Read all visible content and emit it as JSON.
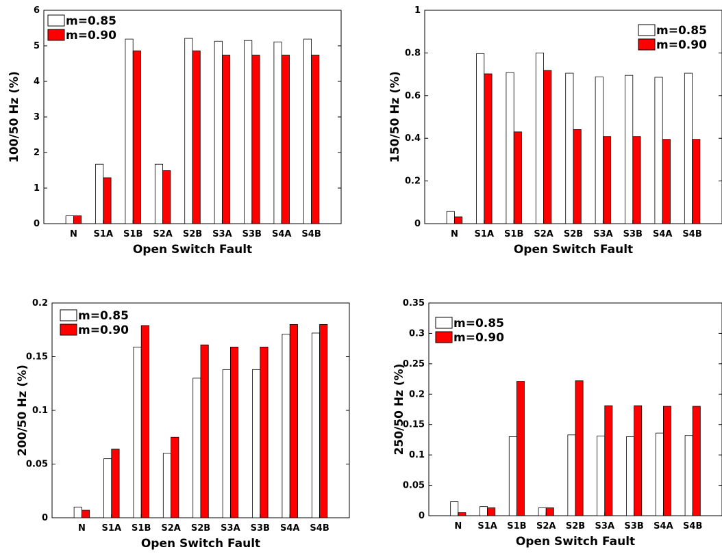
{
  "chart_data": [
    {
      "type": "bar",
      "categories": [
        "N",
        "S1A",
        "S1B",
        "S2A",
        "S2B",
        "S3A",
        "S3B",
        "S4A",
        "S4B"
      ],
      "series": [
        {
          "name": "m=0.85",
          "color": "#ffffff",
          "values": [
            0.22,
            1.67,
            5.19,
            1.67,
            5.21,
            5.13,
            5.15,
            5.11,
            5.19
          ]
        },
        {
          "name": "m=0.90",
          "color": "#ff0000",
          "values": [
            0.22,
            1.29,
            4.86,
            1.49,
            4.86,
            4.74,
            4.74,
            4.74,
            4.74
          ]
        }
      ],
      "xlabel": "Open Switch Fault",
      "ylabel": "100/50 Hz (%)",
      "ylim": [
        0,
        6
      ],
      "yticks": [
        "0",
        "1",
        "2",
        "3",
        "4",
        "5",
        "6"
      ],
      "legend": "top-left"
    },
    {
      "type": "bar",
      "categories": [
        "N",
        "S1A",
        "S1B",
        "S2A",
        "S2B",
        "S3A",
        "S3B",
        "S4A",
        "S4B"
      ],
      "series": [
        {
          "name": "m=0.85",
          "color": "#ffffff",
          "values": [
            0.057,
            0.797,
            0.708,
            0.8,
            0.705,
            0.688,
            0.695,
            0.686,
            0.705
          ]
        },
        {
          "name": "m=0.90",
          "color": "#ff0000",
          "values": [
            0.032,
            0.702,
            0.43,
            0.718,
            0.441,
            0.408,
            0.408,
            0.395,
            0.395
          ]
        }
      ],
      "xlabel": "Open Switch Fault",
      "ylabel": "150/50 Hz (%)",
      "ylim": [
        0,
        1
      ],
      "yticks": [
        "0",
        "0.2",
        "0.4",
        "0.6",
        "0.8",
        "1"
      ],
      "legend": "top-right"
    },
    {
      "type": "bar",
      "categories": [
        "N",
        "S1A",
        "S1B",
        "S2A",
        "S2B",
        "S3A",
        "S3B",
        "S4A",
        "S4B"
      ],
      "series": [
        {
          "name": "m=0.85",
          "color": "#ffffff",
          "values": [
            0.01,
            0.055,
            0.159,
            0.06,
            0.13,
            0.138,
            0.138,
            0.171,
            0.172
          ]
        },
        {
          "name": "m=0.90",
          "color": "#ff0000",
          "values": [
            0.007,
            0.064,
            0.179,
            0.075,
            0.161,
            0.159,
            0.159,
            0.18,
            0.18
          ]
        }
      ],
      "xlabel": "Open Switch Fault",
      "ylabel": "200/50 Hz (%)",
      "ylim": [
        0,
        0.2
      ],
      "yticks": [
        "0",
        "0.05",
        "0.1",
        "0.15",
        "0.2"
      ],
      "legend": "top-left"
    },
    {
      "type": "bar",
      "categories": [
        "N",
        "S1A",
        "S1B",
        "S2A",
        "S2B",
        "S3A",
        "S3B",
        "S4A",
        "S4B"
      ],
      "series": [
        {
          "name": "m=0.85",
          "color": "#ffffff",
          "values": [
            0.023,
            0.015,
            0.13,
            0.013,
            0.133,
            0.131,
            0.13,
            0.136,
            0.132
          ]
        },
        {
          "name": "m=0.90",
          "color": "#ff0000",
          "values": [
            0.005,
            0.013,
            0.221,
            0.013,
            0.222,
            0.181,
            0.181,
            0.18,
            0.18
          ]
        }
      ],
      "xlabel": "Open Switch Fault",
      "ylabel": "250/50 Hz (%)",
      "ylim": [
        0,
        0.35
      ],
      "yticks": [
        "0",
        "0.05",
        "0.1",
        "0.15",
        "0.2",
        "0.25",
        "0.3",
        "0.35"
      ],
      "legend": "top-left"
    }
  ]
}
